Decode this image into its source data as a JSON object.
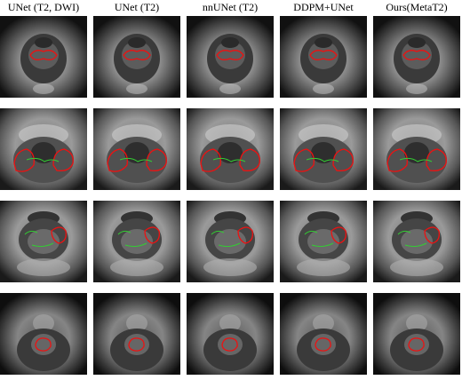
{
  "columns": [
    "UNet (T2, DWI)",
    "UNet (T2)",
    "nnUNet (T2)",
    "DDPM+UNet",
    "Ours(MetaT2)"
  ]
}
